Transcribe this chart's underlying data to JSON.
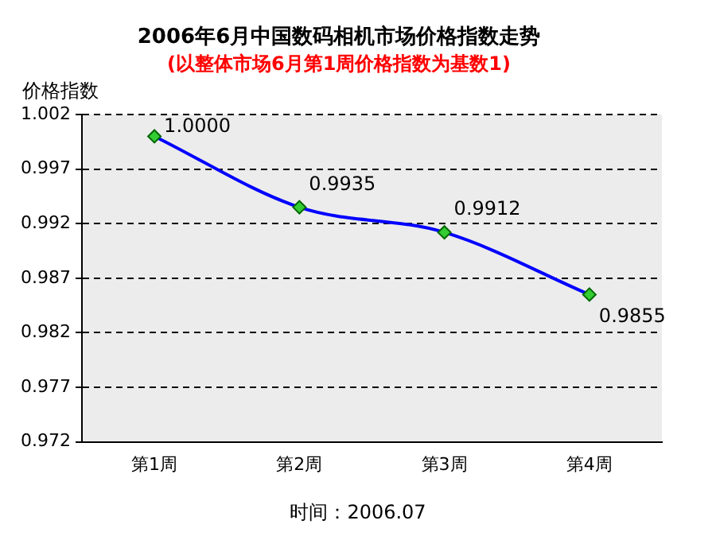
{
  "chart_data": {
    "type": "line",
    "title": "2006年6月中国数码相机市场价格指数走势",
    "subtitle": "(以整体市场6月第1周价格指数为基数1)",
    "ylabel": "价格指数",
    "categories": [
      "第1周",
      "第2周",
      "第3周",
      "第4周"
    ],
    "series": [
      {
        "color": "#0000ff",
        "values": [
          1.0,
          0.9935,
          0.9912,
          0.9855
        ],
        "value_labels": [
          "1.0000",
          "0.9935",
          "0.9912",
          "0.9855"
        ]
      }
    ],
    "ylim": [
      0.972,
      1.002
    ],
    "yticks": [
      0.972,
      0.977,
      0.982,
      0.987,
      0.992,
      0.997,
      1.002
    ],
    "grid": "y",
    "line_style": "solid",
    "marker": "diamond",
    "legend": false,
    "annotations": [
      "时间：2006.07"
    ]
  }
}
